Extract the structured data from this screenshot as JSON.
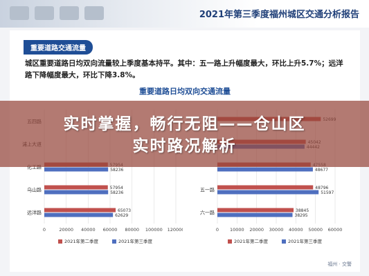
{
  "report": {
    "title": "2021年第三季度福州城区交通分析报告",
    "section_tab": "重要道路交通流量",
    "summary": "城区重要道路日均双向流量较上季度基本持平。其中：五一路上升幅度最大，环比上升5.7%；远洋路下降幅度最大，环比下降3.8%。",
    "footer_mark": "福州 · 交警"
  },
  "overlay": {
    "line1": "实时掌握，畅行无阻——仓山区",
    "line2": "实时路况解析"
  },
  "colors": {
    "q2": "#c0504d",
    "q3": "#4f6fbf",
    "overlay": "#96463c",
    "title": "#1f4e96"
  },
  "chart_data": [
    {
      "type": "bar",
      "orientation": "horizontal",
      "title": "重要道路日均双向交通流量",
      "categories": [
        "五四路",
        "浦上大道",
        "化工路",
        "乌山路",
        "远洋路"
      ],
      "series": [
        {
          "name": "2021年第二季度",
          "values": [
            null,
            null,
            57954,
            57954,
            65073
          ]
        },
        {
          "name": "2021年第三季度",
          "values": [
            null,
            null,
            58236,
            58236,
            62629
          ]
        }
      ],
      "xticks": [
        0,
        20000,
        40000,
        60000,
        80000,
        100000,
        120000
      ],
      "xlim": [
        0,
        120000
      ],
      "legend": "bottom"
    },
    {
      "type": "bar",
      "orientation": "horizontal",
      "categories": [
        "",
        "",
        "",
        "五一路",
        "六一路"
      ],
      "series": [
        {
          "name": "2021年第二季度",
          "values": [
            52699,
            45042,
            47558,
            48796,
            38845
          ]
        },
        {
          "name": "2021年第三季度",
          "values": [
            null,
            44442,
            48677,
            51597,
            38295
          ]
        }
      ],
      "xticks": [
        0,
        10000,
        20000,
        30000,
        40000,
        50000,
        60000
      ],
      "xlim": [
        0,
        60000
      ],
      "legend": "bottom"
    }
  ]
}
